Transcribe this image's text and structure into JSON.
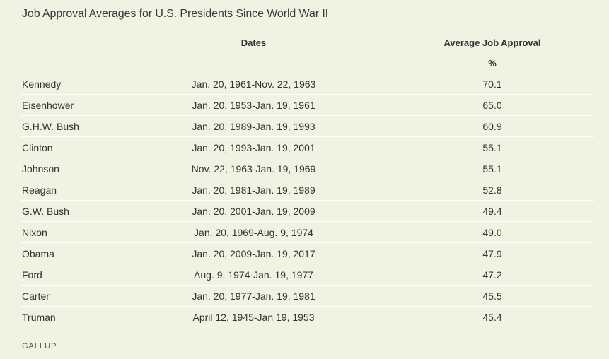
{
  "title": "Job Approval Averages for U.S. Presidents Since World War II",
  "table": {
    "headers": {
      "dates": "Dates",
      "approval": "Average Job Approval",
      "unit": "%"
    },
    "rows": [
      {
        "name": "Kennedy",
        "dates": "Jan. 20, 1961-Nov. 22, 1963",
        "approval": "70.1"
      },
      {
        "name": "Eisenhower",
        "dates": "Jan. 20, 1953-Jan. 19, 1961",
        "approval": "65.0"
      },
      {
        "name": "G.H.W. Bush",
        "dates": "Jan. 20, 1989-Jan. 19, 1993",
        "approval": "60.9"
      },
      {
        "name": "Clinton",
        "dates": "Jan. 20, 1993-Jan. 19, 2001",
        "approval": "55.1"
      },
      {
        "name": "Johnson",
        "dates": "Nov. 22, 1963-Jan. 19, 1969",
        "approval": "55.1"
      },
      {
        "name": "Reagan",
        "dates": "Jan. 20, 1981-Jan. 19, 1989",
        "approval": "52.8"
      },
      {
        "name": "G.W. Bush",
        "dates": "Jan. 20, 2001-Jan. 19, 2009",
        "approval": "49.4"
      },
      {
        "name": "Nixon",
        "dates": "Jan. 20, 1969-Aug. 9, 1974",
        "approval": "49.0"
      },
      {
        "name": "Obama",
        "dates": "Jan. 20, 2009-Jan. 19, 2017",
        "approval": "47.9"
      },
      {
        "name": "Ford",
        "dates": "Aug. 9, 1974-Jan. 19, 1977",
        "approval": "47.2"
      },
      {
        "name": "Carter",
        "dates": "Jan. 20, 1977-Jan. 19, 1981",
        "approval": "45.5"
      },
      {
        "name": "Truman",
        "dates": "April 12, 1945-Jan 19, 1953",
        "approval": "45.4"
      }
    ]
  },
  "footer": {
    "source": "GALLUP"
  },
  "colors": {
    "background": "#eef3e2",
    "divider": "#ffffff",
    "text": "#333333"
  }
}
